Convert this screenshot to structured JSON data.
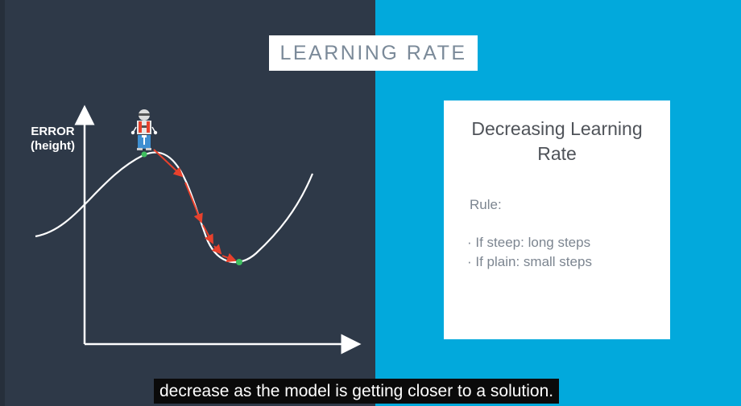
{
  "title": "LEARNING RATE",
  "axis": {
    "label_line1": "ERROR",
    "label_line2": "(height)"
  },
  "card": {
    "title_line1": "Decreasing Learning",
    "title_line2": "Rate",
    "rule_label": "Rule:",
    "items": [
      "· If steep: long steps",
      "· If plain: small steps"
    ]
  },
  "caption": "decrease as the model is getting closer to a solution.",
  "colors": {
    "left_background": "#2e3948",
    "right_background": "#02a9dc",
    "curve": "#ffffff",
    "step_arrows": "#e8412c",
    "points": "#3fbf5f"
  },
  "icons": {
    "agent": "robot-icon"
  }
}
